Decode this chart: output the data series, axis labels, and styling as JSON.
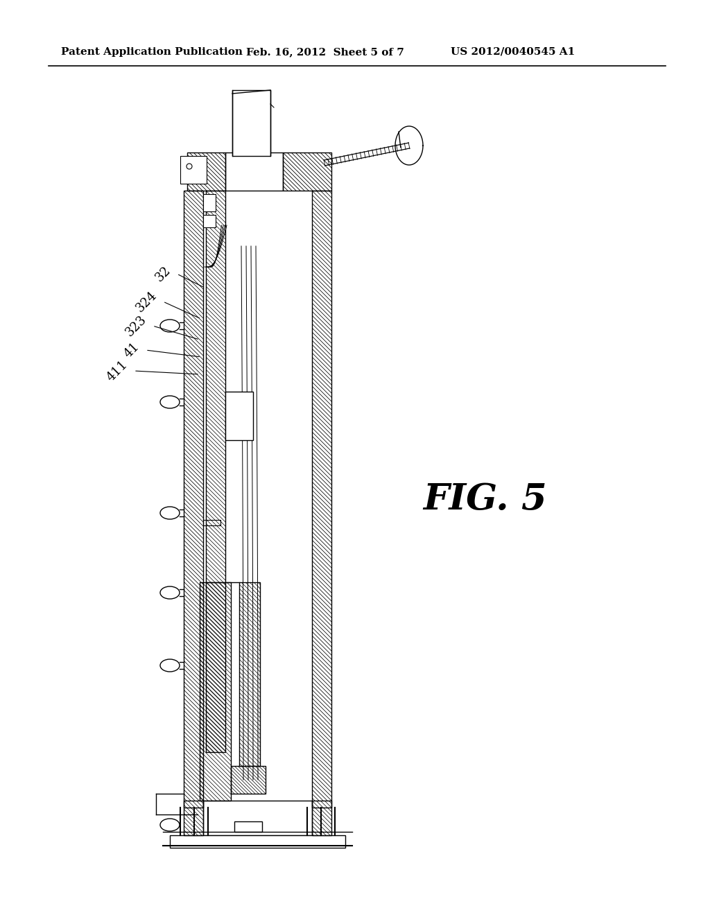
{
  "background_color": "#ffffff",
  "header_left": "Patent Application Publication",
  "header_center": "Feb. 16, 2012  Sheet 5 of 7",
  "header_right": "US 2012/0040545 A1",
  "fig_label": "FIG. 5",
  "labels": [
    "32",
    "324",
    "323",
    "41",
    "411"
  ]
}
